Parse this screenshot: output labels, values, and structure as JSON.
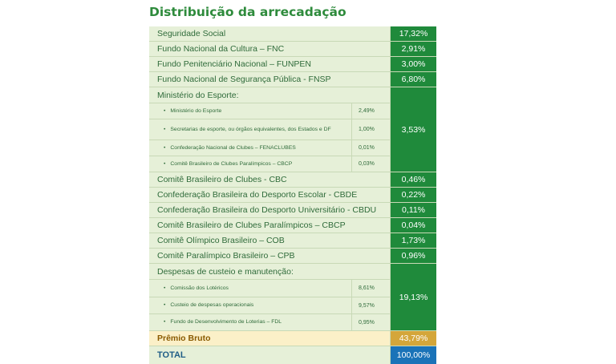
{
  "title": "Distribuição da arrecadação",
  "rows_top": [
    {
      "label": "Seguridade Social",
      "value": "17,32%"
    },
    {
      "label": "Fundo Nacional da Cultura – FNC",
      "value": "2,91%"
    },
    {
      "label": "Fundo Penitenciário Nacional – FUNPEN",
      "value": "3,00%"
    },
    {
      "label": "Fundo Nacional de Segurança Pública - FNSP",
      "value": "6,80%"
    }
  ],
  "esporte": {
    "label": "Ministério do Esporte:",
    "value": "3,53%",
    "items": [
      {
        "label": "Ministério do Esporte",
        "value": "2,49%"
      },
      {
        "label": "Secretarias de esporte, ou órgãos equivalentes, dos Estados e DF",
        "value": "1,00%"
      },
      {
        "label": "Confederação Nacional de Clubes – FENACLUBES",
        "value": "0,01%"
      },
      {
        "label": "Comitê Brasileiro de Clubes Paralímpicos – CBCP",
        "value": "0,03%"
      }
    ]
  },
  "rows_mid": [
    {
      "label": "Comitê Brasileiro de Clubes - CBC",
      "value": "0,46%"
    },
    {
      "label": "Confederação Brasileira do Desporto Escolar - CBDE",
      "value": "0,22%"
    },
    {
      "label": "Confederação Brasileira do Desporto Universitário - CBDU",
      "value": "0,11%"
    },
    {
      "label": "Comitê Brasileiro de Clubes Paralímpicos – CBCP",
      "value": "0,04%"
    },
    {
      "label": "Comitê Olímpico Brasileiro – COB",
      "value": "1,73%"
    },
    {
      "label": "Comitê Paralímpico Brasileiro – CPB",
      "value": "0,96%"
    }
  ],
  "custeio": {
    "label": "Despesas de custeio e manutenção:",
    "value": "19,13%",
    "items": [
      {
        "label": "Comissão dos Lotéricos",
        "value": "8,61%"
      },
      {
        "label": "Custeio de despesas operacionais",
        "value": "9,57%"
      },
      {
        "label": "Fundo de Desenvolvimento de Loterias – FDL",
        "value": "0,95%"
      }
    ]
  },
  "premio": {
    "label": "Prêmio Bruto",
    "value": "43,79%"
  },
  "total": {
    "label": "TOTAL",
    "value": "100,00%"
  },
  "colors": {
    "green": "#1f8a3b",
    "light_green": "#e6f0d8",
    "gold": "#d4a63a",
    "blue": "#1a73b8"
  }
}
